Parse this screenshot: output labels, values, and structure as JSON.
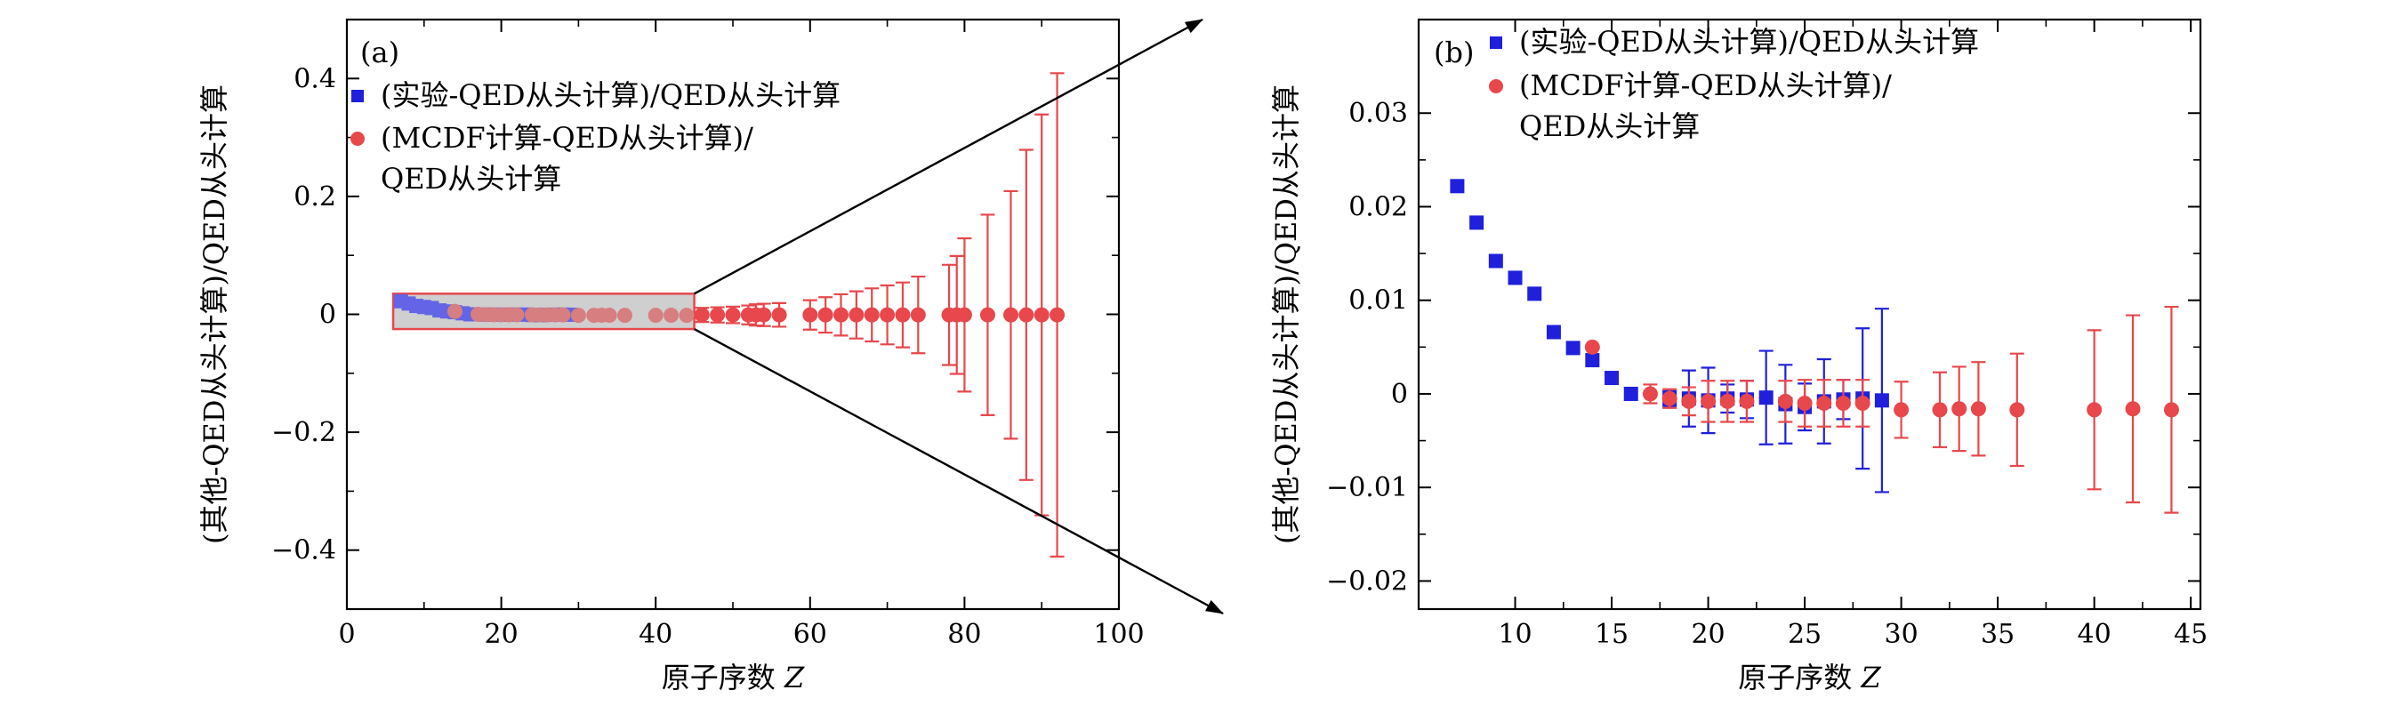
{
  "chart_data": [
    {
      "panel": "a",
      "type": "scatter",
      "panel_label": "(a)",
      "xlabel": "原子序数 Z",
      "ylabel": "(其他-QED从头计算)/QED从头计算",
      "xlim": [
        0,
        100
      ],
      "ylim": [
        -0.5,
        0.5
      ],
      "xticks": [
        0,
        20,
        40,
        60,
        80,
        100
      ],
      "xtick_labels": [
        "0",
        "20",
        "40",
        "60",
        "80",
        "100"
      ],
      "yticks": [
        -0.4,
        -0.2,
        0,
        0.2,
        0.4
      ],
      "ytick_labels": [
        "−0.4",
        "−0.2",
        "0",
        "0.2",
        "0.4"
      ],
      "legend": [
        {
          "label": "(实验-QED从头计算)/QED从头计算",
          "marker": "square",
          "color": "#1f1fdc"
        },
        {
          "label_lines": [
            "(MCDF计算-QED从头计算)/",
            "QED从头计算"
          ],
          "marker": "circle",
          "color": "#e8474b"
        }
      ],
      "zoom_box": {
        "x": [
          6,
          45
        ],
        "y": [
          -0.025,
          0.035
        ]
      },
      "series": [
        {
          "name": "(实验-QED从头计算)/QED从头计算",
          "marker": "square",
          "color": "#1f1fdc",
          "x": [
            7,
            8,
            9,
            10,
            11,
            12,
            13,
            14,
            15,
            16,
            18,
            19,
            20,
            21,
            22,
            23,
            24,
            25,
            26,
            27,
            28,
            29
          ],
          "y": [
            0.0222,
            0.0183,
            0.0142,
            0.0124,
            0.0107,
            0.0066,
            0.0049,
            0.0036,
            0.0017,
            0.0,
            -0.0005,
            -0.0005,
            -0.0007,
            -0.0005,
            -0.0006,
            -0.0004,
            -0.0011,
            -0.0014,
            -0.0008,
            -0.0006,
            -0.0005,
            -0.0007
          ],
          "yerr": [
            0,
            0,
            0,
            0,
            0,
            0,
            0,
            0,
            0,
            0,
            0.0008,
            0.003,
            0.0035,
            0.0015,
            0.002,
            0.005,
            0.0042,
            0.0025,
            0.0045,
            0.0021,
            0.0075,
            0.0098
          ]
        },
        {
          "name": "(MCDF计算-QED从头计算)/QED从头计算",
          "marker": "circle",
          "color": "#e8474b",
          "x": [
            14,
            17,
            18,
            19,
            20,
            21,
            22,
            24,
            25,
            26,
            27,
            28,
            30,
            32,
            33,
            34,
            36,
            40,
            42,
            44,
            46,
            48,
            50,
            52,
            53,
            54,
            56,
            60,
            62,
            64,
            66,
            68,
            70,
            72,
            74,
            78,
            79,
            80,
            83,
            86,
            88,
            90,
            92
          ],
          "y": [
            0.005,
            0.0,
            -0.0005,
            -0.0008,
            -0.0008,
            -0.0008,
            -0.0008,
            -0.0008,
            -0.001,
            -0.001,
            -0.001,
            -0.001,
            -0.0017,
            -0.0017,
            -0.0016,
            -0.0016,
            -0.0017,
            -0.0017,
            -0.0016,
            -0.0017,
            -0.001,
            -0.001,
            -0.001,
            -0.001,
            -0.001,
            -0.001,
            -0.001,
            -0.001,
            -0.001,
            -0.001,
            -0.001,
            -0.001,
            -0.001,
            -0.001,
            -0.001,
            -0.001,
            -0.001,
            -0.001,
            -0.001,
            -0.001,
            -0.001,
            -0.001,
            -0.001
          ],
          "yerr": [
            0,
            0.001,
            0.001,
            0.0015,
            0.0022,
            0.0022,
            0.0022,
            0.0022,
            0.0025,
            0.0025,
            0.0025,
            0.0025,
            0.003,
            0.004,
            0.0045,
            0.005,
            0.006,
            0.0085,
            0.01,
            0.011,
            0.012,
            0.013,
            0.014,
            0.016,
            0.018,
            0.019,
            0.02,
            0.025,
            0.03,
            0.035,
            0.04,
            0.045,
            0.05,
            0.055,
            0.065,
            0.085,
            0.1,
            0.13,
            0.17,
            0.21,
            0.28,
            0.34,
            0.41
          ]
        }
      ]
    },
    {
      "panel": "b",
      "type": "scatter",
      "panel_label": "(b)",
      "xlabel": "原子序数 Z",
      "ylabel": "(其他-QED从头计算)/QED从头计算",
      "xlim": [
        5,
        45.5
      ],
      "ylim": [
        -0.023,
        0.04
      ],
      "xticks": [
        10,
        15,
        20,
        25,
        30,
        35,
        40,
        45
      ],
      "xtick_labels": [
        "10",
        "15",
        "20",
        "25",
        "30",
        "35",
        "40",
        "45"
      ],
      "yticks": [
        -0.02,
        -0.01,
        0,
        0.01,
        0.02,
        0.03
      ],
      "ytick_labels": [
        "−0.02",
        "−0.01",
        "0",
        "0.01",
        "0.02",
        "0.03"
      ],
      "legend": [
        {
          "label": "(实验-QED从头计算)/QED从头计算",
          "marker": "square",
          "color": "#1f1fdc"
        },
        {
          "label_lines": [
            "(MCDF计算-QED从头计算)/",
            "QED从头计算"
          ],
          "marker": "circle",
          "color": "#e8474b"
        }
      ],
      "series": [
        {
          "name": "(实验-QED从头计算)/QED从头计算",
          "marker": "square",
          "color": "#1f1fdc",
          "x": [
            7,
            8,
            9,
            10,
            11,
            12,
            13,
            14,
            15,
            16,
            18,
            19,
            20,
            21,
            22,
            23,
            24,
            25,
            26,
            27,
            28,
            29
          ],
          "y": [
            0.0222,
            0.0183,
            0.0142,
            0.0124,
            0.0107,
            0.0066,
            0.0049,
            0.0036,
            0.0017,
            0.0,
            -0.0005,
            -0.0005,
            -0.0007,
            -0.0005,
            -0.0006,
            -0.0004,
            -0.0011,
            -0.0014,
            -0.0008,
            -0.0006,
            -0.0005,
            -0.0007
          ],
          "yerr": [
            0,
            0,
            0,
            0,
            0,
            0,
            0,
            0,
            0,
            0,
            0.0008,
            0.003,
            0.0035,
            0.0015,
            0.002,
            0.005,
            0.0042,
            0.0025,
            0.0045,
            0.0021,
            0.0075,
            0.0098
          ]
        },
        {
          "name": "(MCDF计算-QED从头计算)/QED从头计算",
          "marker": "circle",
          "color": "#e8474b",
          "x": [
            14,
            17,
            18,
            19,
            20,
            21,
            22,
            24,
            25,
            26,
            27,
            28,
            30,
            32,
            33,
            34,
            36,
            40,
            42,
            44
          ],
          "y": [
            0.005,
            0.0,
            -0.0005,
            -0.0008,
            -0.0008,
            -0.0008,
            -0.0008,
            -0.0008,
            -0.001,
            -0.001,
            -0.001,
            -0.001,
            -0.0017,
            -0.0017,
            -0.0016,
            -0.0016,
            -0.0017,
            -0.0017,
            -0.0016,
            -0.0017
          ],
          "yerr": [
            0,
            0.001,
            0.001,
            0.0015,
            0.0022,
            0.0022,
            0.0022,
            0.0022,
            0.0025,
            0.0025,
            0.0025,
            0.0025,
            0.003,
            0.004,
            0.0045,
            0.005,
            0.006,
            0.0085,
            0.01,
            0.011
          ]
        }
      ]
    }
  ]
}
